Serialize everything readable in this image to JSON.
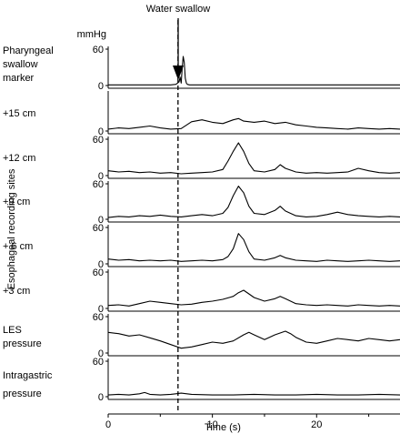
{
  "chart_data": {
    "type": "line",
    "annotation": "Water swallow",
    "unit_label": "mmHg",
    "xlabel": "Time (s)",
    "ylabel": "Esophageal recording sites",
    "xlim": [
      0,
      28
    ],
    "x_ticks": [
      0,
      10,
      20
    ],
    "ylim": [
      0,
      60
    ],
    "y_ticks": [
      0,
      60
    ],
    "swallow_time": 6.7,
    "series": [
      {
        "name": "Pharyngeal swallow marker",
        "name_lines": [
          "Pharyngeal",
          "swallow",
          "marker"
        ],
        "show_top_tick": true,
        "x": [
          0,
          2,
          4,
          6,
          6.5,
          6.8,
          6.9,
          7.0,
          7.1,
          7.2,
          7.3,
          7.4,
          7.5,
          7.6,
          7.8,
          8.0,
          10,
          14,
          18,
          22,
          26,
          28
        ],
        "y": [
          1,
          1,
          1,
          1,
          2,
          6,
          14,
          4,
          28,
          48,
          38,
          12,
          4,
          2,
          1,
          1,
          1,
          1,
          1,
          1,
          1,
          1
        ]
      },
      {
        "name": "+15 cm",
        "name_lines": [
          "+15 cm"
        ],
        "show_top_tick": false,
        "x": [
          0,
          1,
          2,
          3,
          4,
          5,
          6,
          7,
          8,
          9,
          10,
          11,
          12,
          12.5,
          13,
          14,
          15,
          16,
          17,
          18,
          19,
          20,
          21,
          22,
          23,
          24,
          25,
          26,
          27,
          28
        ],
        "y": [
          3,
          5,
          4,
          6,
          8,
          5,
          3,
          4,
          15,
          18,
          14,
          12,
          18,
          20,
          16,
          14,
          16,
          12,
          14,
          10,
          8,
          6,
          5,
          4,
          3,
          5,
          4,
          3,
          4,
          3
        ]
      },
      {
        "name": "+12 cm",
        "name_lines": [
          "+12 cm"
        ],
        "show_top_tick": true,
        "x": [
          0,
          1,
          2,
          3,
          4,
          5,
          6,
          7,
          8,
          9,
          10,
          11,
          11.5,
          12,
          12.5,
          13,
          13.5,
          14,
          15,
          16,
          16.5,
          17,
          18,
          19,
          20,
          21,
          22,
          23,
          24,
          25,
          26,
          27,
          28
        ],
        "y": [
          8,
          6,
          7,
          5,
          6,
          4,
          5,
          3,
          4,
          5,
          6,
          10,
          24,
          40,
          54,
          40,
          20,
          8,
          6,
          10,
          18,
          12,
          6,
          4,
          5,
          4,
          5,
          6,
          12,
          8,
          5,
          4,
          5
        ]
      },
      {
        "name": "+9 cm",
        "name_lines": [
          "+9 cm"
        ],
        "show_top_tick": true,
        "x": [
          0,
          1,
          2,
          3,
          4,
          5,
          6,
          7,
          8,
          9,
          10,
          11,
          11.5,
          12,
          12.5,
          13,
          13.5,
          14,
          15,
          16,
          16.5,
          17,
          18,
          19,
          20,
          21,
          22,
          23,
          24,
          25,
          26,
          27,
          28
        ],
        "y": [
          3,
          5,
          4,
          6,
          5,
          7,
          5,
          4,
          6,
          8,
          6,
          10,
          20,
          40,
          56,
          45,
          22,
          10,
          8,
          15,
          22,
          14,
          6,
          4,
          5,
          8,
          12,
          8,
          6,
          5,
          4,
          5,
          4
        ]
      },
      {
        "name": "+ 6 cm",
        "name_lines": [
          "+ 6 cm"
        ],
        "show_top_tick": true,
        "x": [
          0,
          1,
          2,
          3,
          4,
          5,
          6,
          7,
          8,
          9,
          10,
          11,
          11.5,
          12,
          12.5,
          13,
          13.5,
          14,
          15,
          16,
          16.5,
          17,
          18,
          19,
          20,
          21,
          22,
          23,
          24,
          25,
          26,
          27,
          28
        ],
        "y": [
          8,
          6,
          7,
          5,
          6,
          5,
          6,
          4,
          5,
          6,
          5,
          7,
          12,
          25,
          50,
          40,
          20,
          8,
          6,
          10,
          14,
          10,
          6,
          5,
          4,
          6,
          5,
          4,
          5,
          6,
          5,
          4,
          5
        ]
      },
      {
        "name": "+3 cm",
        "name_lines": [
          "+3 cm"
        ],
        "show_top_tick": true,
        "x": [
          0,
          1,
          2,
          3,
          4,
          5,
          6,
          7,
          8,
          9,
          10,
          11,
          12,
          12.5,
          13,
          13.5,
          14,
          15,
          16,
          16.5,
          17,
          18,
          19,
          20,
          21,
          22,
          23,
          24,
          25,
          26,
          27,
          28
        ],
        "y": [
          5,
          6,
          4,
          8,
          12,
          10,
          8,
          6,
          7,
          10,
          12,
          15,
          20,
          26,
          30,
          24,
          18,
          12,
          16,
          20,
          16,
          8,
          6,
          5,
          6,
          5,
          4,
          6,
          5,
          4,
          5,
          4
        ]
      },
      {
        "name": "LES pressure",
        "name_lines": [
          "LES",
          "pressure"
        ],
        "show_top_tick": true,
        "x": [
          0,
          1,
          2,
          3,
          4,
          5,
          6,
          7,
          8,
          9,
          10,
          11,
          12,
          13,
          13.5,
          14,
          15,
          16,
          17,
          17.5,
          18,
          19,
          20,
          21,
          22,
          23,
          24,
          25,
          26,
          27,
          28
        ],
        "y": [
          34,
          32,
          28,
          30,
          25,
          20,
          14,
          8,
          10,
          14,
          18,
          16,
          20,
          30,
          34,
          30,
          22,
          30,
          36,
          32,
          26,
          18,
          16,
          20,
          24,
          22,
          20,
          24,
          22,
          20,
          22
        ]
      },
      {
        "name": "Intragastric pressure",
        "name_lines": [
          "Intragastric",
          "pressure"
        ],
        "show_top_tick": true,
        "x": [
          0,
          1,
          2,
          3,
          3.5,
          4,
          5,
          6,
          6.5,
          7,
          8,
          10,
          12,
          14,
          16,
          18,
          20,
          22,
          24,
          26,
          28
        ],
        "y": [
          3,
          4,
          3,
          5,
          7,
          4,
          3,
          4,
          5,
          6,
          4,
          3,
          3,
          4,
          3,
          3,
          4,
          3,
          3,
          4,
          3
        ]
      }
    ]
  }
}
